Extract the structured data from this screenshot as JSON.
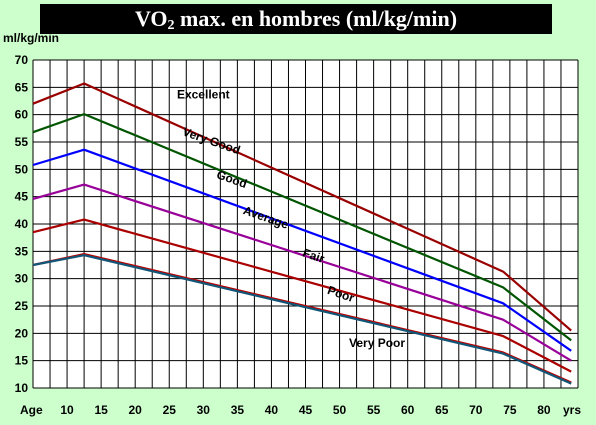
{
  "header": {
    "title_main": "VO",
    "title_sub": "2",
    "title_rest": " max. en hombres (ml/kg/min)"
  },
  "chart_data": {
    "type": "line",
    "title": "VO2 max. en hombres (ml/kg/min)",
    "ylabel": "ml/kg/min",
    "xlabel_left": "Age",
    "xlabel_right": "yrs",
    "xlim": [
      5,
      85
    ],
    "ylim": [
      10,
      70
    ],
    "x_ticks": [
      10,
      15,
      20,
      25,
      30,
      35,
      40,
      45,
      50,
      55,
      60,
      65,
      70,
      75,
      80
    ],
    "y_ticks": [
      10,
      15,
      20,
      25,
      30,
      35,
      40,
      45,
      50,
      55,
      60,
      65,
      70
    ],
    "grid": true,
    "legend": "inline labels",
    "series": [
      {
        "name": "Excellent",
        "color": "#990000",
        "x": [
          5,
          12.5,
          74,
          84
        ],
        "y": [
          62,
          65.7,
          31.3,
          20.5
        ],
        "label_at": [
          30,
          63
        ],
        "label_rotate": 0
      },
      {
        "name": "Very Good",
        "color": "#005500",
        "x": [
          5,
          12.5,
          74,
          84
        ],
        "y": [
          56.8,
          60.1,
          28.4,
          18.7
        ],
        "label_at": [
          31,
          54.5
        ],
        "label_rotate": 19
      },
      {
        "name": "Good",
        "color": "#0000FF",
        "x": [
          5,
          12.5,
          74,
          84
        ],
        "y": [
          50.8,
          53.6,
          25.5,
          16.8
        ],
        "label_at": [
          34,
          47.5
        ],
        "label_rotate": 19
      },
      {
        "name": "Average",
        "color": "#990099",
        "x": [
          5,
          12.5,
          74,
          84
        ],
        "y": [
          44.6,
          47.2,
          22.5,
          15
        ],
        "label_at": [
          39,
          40.5
        ],
        "label_rotate": 19
      },
      {
        "name": "Fair",
        "color": "#AA0000",
        "x": [
          5,
          12.5,
          74,
          84
        ],
        "y": [
          38.5,
          40.8,
          19.5,
          13
        ],
        "label_at": [
          46,
          33.5
        ],
        "label_rotate": 19
      },
      {
        "name": "Poor",
        "color": "#BB0000",
        "x": [
          5,
          12.5,
          74,
          84
        ],
        "y": [
          32.5,
          34.5,
          16.5,
          11
        ],
        "label_at": [
          50,
          26.5
        ],
        "label_rotate": 19
      },
      {
        "name": "Very Poor",
        "color": "#115577",
        "x": [
          5,
          12.5,
          74,
          84
        ],
        "y": [
          32.5,
          34.3,
          16.3,
          10.8
        ],
        "label_at": [
          55.5,
          17.5
        ],
        "label_rotate": 0
      }
    ]
  }
}
